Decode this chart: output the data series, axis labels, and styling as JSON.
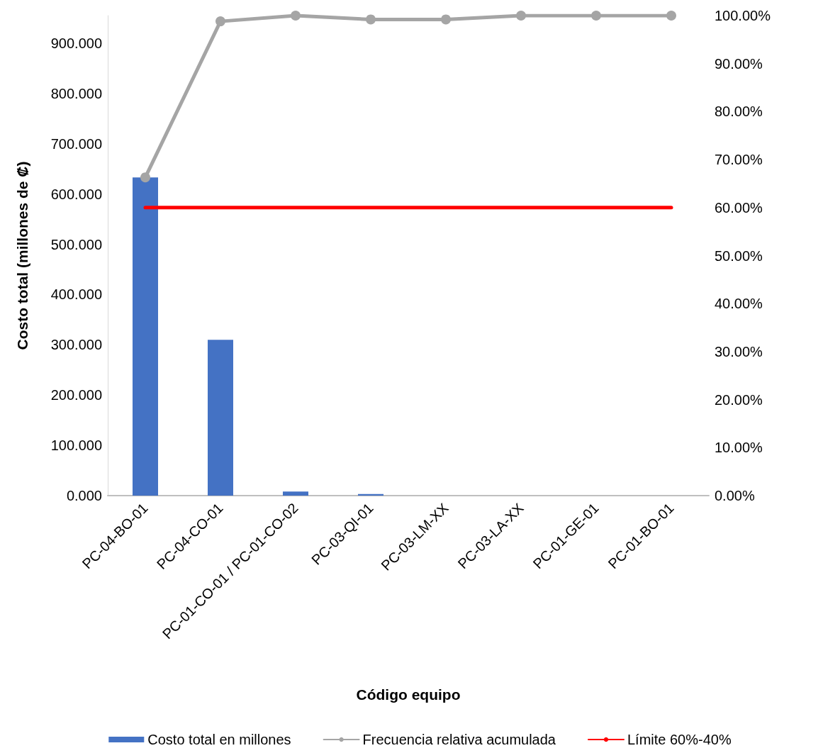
{
  "chart_data": {
    "type": "bar",
    "xlabel": "Código equipo",
    "ylabel": "Costo total (millones de ₡)",
    "categories": [
      "PC-04-BO-01",
      "PC-04-CO-01",
      "PC-01-CO-01 / PC-01-CO-02",
      "PC-03-QI-01",
      "PC-03-LM-XX",
      "PC-03-LA-XX",
      "PC-01-GE-01",
      "PC-01-BO-01"
    ],
    "series": [
      {
        "name": "Costo total en millones",
        "color": "#4472c4",
        "values": [
          633,
          310,
          8,
          3,
          0,
          0,
          0,
          0
        ]
      },
      {
        "name": "Frecuencia relativa acumulada",
        "type": "line",
        "axis": "y2",
        "color": "#a5a5a5",
        "marker": "circle",
        "values": [
          66.3,
          98.8,
          100,
          99.2,
          99.2,
          100,
          100,
          100
        ]
      },
      {
        "name": "Límite 60%-40%",
        "type": "line",
        "axis": "y2",
        "color": "#ff0000",
        "marker": "none",
        "values": [
          60,
          60,
          60,
          60,
          60,
          60,
          60,
          60
        ]
      }
    ],
    "ylim": [
      0,
      955
    ],
    "yticks": [
      {
        "value": 0,
        "label": "0.000"
      },
      {
        "value": 100,
        "label": "100.000"
      },
      {
        "value": 200,
        "label": "200.000"
      },
      {
        "value": 300,
        "label": "300.000"
      },
      {
        "value": 400,
        "label": "400.000"
      },
      {
        "value": 500,
        "label": "500.000"
      },
      {
        "value": 600,
        "label": "600.000"
      },
      {
        "value": 700,
        "label": "700.000"
      },
      {
        "value": 800,
        "label": "800.000"
      },
      {
        "value": 900,
        "label": "900.000"
      }
    ],
    "y2lim": [
      0,
      100
    ],
    "y2ticks": [
      {
        "value": 0,
        "label": "0.00%"
      },
      {
        "value": 10,
        "label": "10.00%"
      },
      {
        "value": 20,
        "label": "20.00%"
      },
      {
        "value": 30,
        "label": "30.00%"
      },
      {
        "value": 40,
        "label": "40.00%"
      },
      {
        "value": 50,
        "label": "50.00%"
      },
      {
        "value": 60,
        "label": "60.00%"
      },
      {
        "value": 70,
        "label": "70.00%"
      },
      {
        "value": 80,
        "label": "80.00%"
      },
      {
        "value": 90,
        "label": "90.00%"
      },
      {
        "value": 100,
        "label": "100.00%"
      }
    ],
    "grid": false,
    "legend": "bottom"
  }
}
